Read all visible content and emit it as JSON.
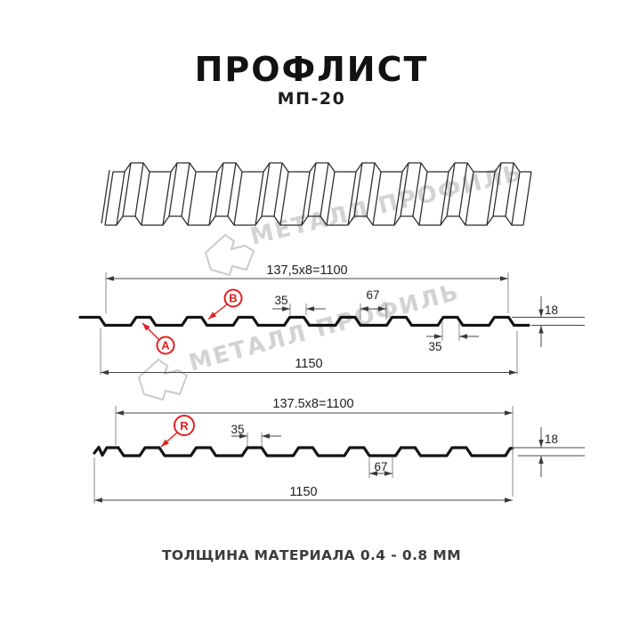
{
  "header": {
    "title": "ПРОФЛИСТ",
    "subtitle": "МП-20"
  },
  "watermark": {
    "text": "МЕТАЛЛ ПРОФИЛЬ"
  },
  "footer": {
    "text": "ТОЛЩИНА МАТЕРИАЛА 0.4 - 0.8 ММ"
  },
  "colors": {
    "accent_red": "#e61e1e",
    "line_black": "#141414",
    "watermark_gray": "#d3d3d3"
  },
  "drawing1": {
    "side_labels": {
      "a": "A",
      "b": "B"
    },
    "dims": {
      "pitch": "137,5x8=1100",
      "crest_top": "35",
      "rib_base": "67",
      "height": "18",
      "crest_top_2": "35",
      "width": "1150"
    }
  },
  "drawing2": {
    "side_labels": {
      "r": "R"
    },
    "dims": {
      "pitch": "137.5x8=1100",
      "crest_top": "35",
      "rib_base": "67",
      "height": "18",
      "width": "1150"
    }
  }
}
